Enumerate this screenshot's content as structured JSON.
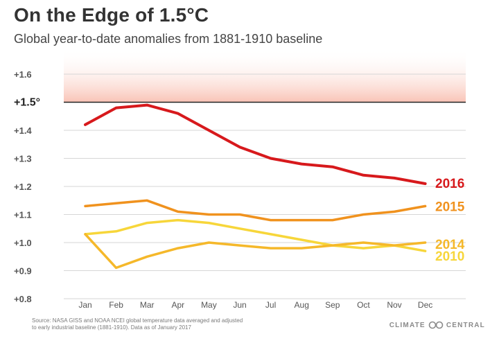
{
  "title": "On the Edge of 1.5°C",
  "subtitle": "Global year-to-date anomalies from 1881-1910 baseline",
  "footer": {
    "source_line1": "Source: NASA GISS and NOAA NCEI global temperature data averaged and adjusted",
    "source_line2": "to early industrial baseline (1881-1910). Data as of January 2017",
    "brand_left": "CLIMATE",
    "brand_right": "CENTRAL"
  },
  "chart_data": {
    "type": "line",
    "title": "On the Edge of 1.5°C",
    "subtitle": "Global year-to-date anomalies from 1881-1910 baseline",
    "xlabel": "",
    "ylabel": "",
    "categories": [
      "Jan",
      "Feb",
      "Mar",
      "Apr",
      "May",
      "Jun",
      "Jul",
      "Aug",
      "Sep",
      "Oct",
      "Nov",
      "Dec"
    ],
    "ylim": [
      0.8,
      1.6
    ],
    "y_ticks": [
      {
        "value": 1.6,
        "label": "+1.6"
      },
      {
        "value": 1.5,
        "label": "+1.5°"
      },
      {
        "value": 1.4,
        "label": "+1.4"
      },
      {
        "value": 1.3,
        "label": "+1.3"
      },
      {
        "value": 1.2,
        "label": "+1.2"
      },
      {
        "value": 1.1,
        "label": "+1.1"
      },
      {
        "value": 1.0,
        "label": "+1.0"
      },
      {
        "value": 0.9,
        "label": "+0.9"
      },
      {
        "value": 0.8,
        "label": "+0.8"
      }
    ],
    "threshold": {
      "value": 1.5
    },
    "series": [
      {
        "name": "2016",
        "color": "#d7191c",
        "values": [
          1.42,
          1.48,
          1.49,
          1.46,
          1.4,
          1.34,
          1.3,
          1.28,
          1.27,
          1.24,
          1.23,
          1.21
        ]
      },
      {
        "name": "2015",
        "color": "#f0921e",
        "values": [
          1.13,
          1.14,
          1.15,
          1.11,
          1.1,
          1.1,
          1.08,
          1.08,
          1.08,
          1.1,
          1.11,
          1.13
        ]
      },
      {
        "name": "2014",
        "color": "#f5b82a",
        "values": [
          1.03,
          0.91,
          0.95,
          0.98,
          1.0,
          0.99,
          0.98,
          0.98,
          0.99,
          1.0,
          0.99,
          1.0
        ]
      },
      {
        "name": "2010",
        "color": "#f7d63a",
        "values": [
          1.03,
          1.04,
          1.07,
          1.08,
          1.07,
          1.05,
          1.03,
          1.01,
          0.99,
          0.98,
          0.99,
          0.97
        ]
      }
    ]
  }
}
